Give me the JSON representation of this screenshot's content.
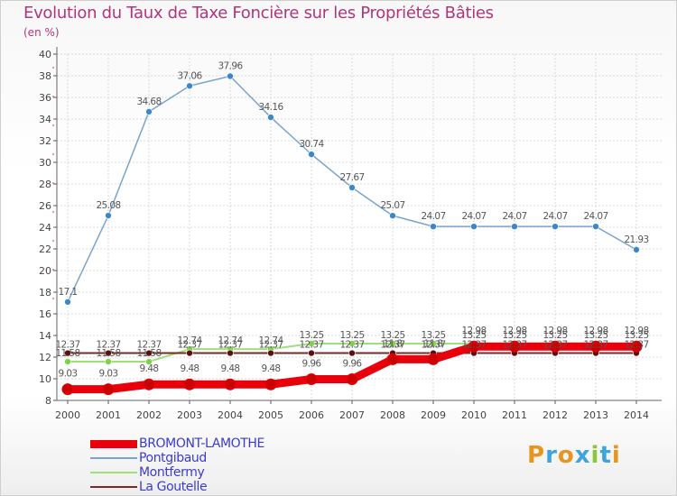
{
  "title": "Evolution du Taux de Taxe Foncière sur les Propriétés Bâties",
  "subtitle": "(en %)",
  "logo": {
    "text": "Proxiti",
    "colors": [
      "#e8951f",
      "#3da5dc",
      "#e8951f",
      "#3da5dc",
      "#8cc63f",
      "#3da5dc",
      "#e8951f"
    ]
  },
  "chart_data": {
    "type": "line",
    "title": "Evolution du Taux de Taxe Foncière sur les Propriétés Bâties",
    "ylabel": "(en %)",
    "xlabel": "",
    "ylim": [
      8,
      40
    ],
    "y_ticks": [
      8,
      10,
      12,
      14,
      16,
      18,
      20,
      22,
      24,
      26,
      28,
      30,
      32,
      34,
      36,
      38,
      40
    ],
    "categories": [
      "2000",
      "2001",
      "2002",
      "2003",
      "2004",
      "2005",
      "2006",
      "2007",
      "2008",
      "2009",
      "2010",
      "2011",
      "2012",
      "2013",
      "2014"
    ],
    "grid": true,
    "legend_position": "bottom-left",
    "series": [
      {
        "name": "BROMONT-LAMOTHE",
        "color": "#e8000b",
        "marker_color": "#cc0000",
        "values": [
          9.03,
          9.03,
          9.48,
          9.48,
          9.48,
          9.48,
          9.96,
          9.96,
          11.8,
          11.8,
          12.98,
          12.98,
          12.98,
          12.98,
          12.98
        ],
        "labels": [
          "9.03",
          "9.03",
          "9.48",
          "9.48",
          "9.48",
          "9.48",
          "9.96",
          "9.96",
          "11.8",
          "11.8",
          "12.98",
          "12.98",
          "12.98",
          "12.98",
          "12.98"
        ]
      },
      {
        "name": "Pontgibaud",
        "color": "#7aa3cf",
        "marker_color": "#3c87c8",
        "values": [
          17.1,
          25.08,
          34.68,
          37.06,
          37.96,
          34.16,
          30.74,
          27.67,
          25.07,
          24.07,
          24.07,
          24.07,
          24.07,
          24.07,
          21.93
        ],
        "labels": [
          "17.1",
          "25.08",
          "34.68",
          "37.06",
          "37.96",
          "34.16",
          "30.74",
          "27.67",
          "25.07",
          "24.07",
          "24.07",
          "24.07",
          "24.07",
          "24.07",
          "21.93"
        ]
      },
      {
        "name": "Montfermy",
        "color": "#9fe07a",
        "marker_color": "#7fd04a",
        "values": [
          11.58,
          11.58,
          11.58,
          12.74,
          12.74,
          12.74,
          13.25,
          13.25,
          13.25,
          13.25,
          13.25,
          13.25,
          13.25,
          13.25,
          13.25
        ],
        "labels": [
          "11.58",
          "11.58",
          "11.58",
          "12.74",
          "12.74",
          "12.74",
          "13.25",
          "13.25",
          "13.25",
          "13.25",
          "13.25",
          "13.25",
          "13.25",
          "13.25",
          "13.25"
        ]
      },
      {
        "name": "La Goutelle",
        "color": "#7a2a2a",
        "marker_color": "#5a1010",
        "values": [
          12.37,
          12.37,
          12.37,
          12.37,
          12.37,
          12.37,
          12.37,
          12.37,
          12.37,
          12.37,
          12.37,
          12.37,
          12.37,
          12.37,
          12.37
        ],
        "labels": [
          "12.37",
          "12.37",
          "12.37",
          "12.37",
          "12.37",
          "12.37",
          "12.37",
          "12.37",
          "12.37",
          "12.37",
          "12.37",
          "12.37",
          "12.37",
          "12.37",
          "12.37"
        ]
      }
    ]
  }
}
